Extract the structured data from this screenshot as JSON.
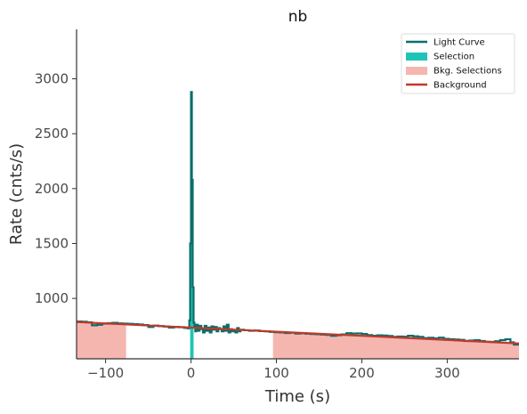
{
  "chart_data": {
    "type": "line",
    "title": "nb",
    "xlabel": "Time (s)",
    "ylabel": "Rate (cnts/s)",
    "xlim": [
      -134,
      384
    ],
    "ylim": [
      450,
      3450
    ],
    "xticks": [
      -100,
      0,
      100,
      200,
      300
    ],
    "xtick_labels": [
      "−100",
      "0",
      "100",
      "200",
      "300"
    ],
    "yticks": [
      1000,
      1500,
      2000,
      2500,
      3000
    ],
    "ytick_labels": [
      "1000",
      "1500",
      "2000",
      "2500",
      "3000"
    ],
    "grid": false,
    "legend_position": "top-right",
    "colors": {
      "light_curve": "#0a6e68",
      "selection": "#20c4b6",
      "bkg_selection": "#f5b6b0",
      "background": "#c0392b"
    },
    "legend": [
      {
        "label": "Light Curve",
        "kind": "line",
        "color": "#0a6e68"
      },
      {
        "label": "Selection",
        "kind": "patch",
        "color": "#20c4b6"
      },
      {
        "label": "Bkg. Selections",
        "kind": "patch",
        "color": "#f5b6b0"
      },
      {
        "label": "Background",
        "kind": "line",
        "color": "#c0392b"
      }
    ],
    "bkg_selections": [
      [
        -134,
        -76
      ],
      [
        96,
        384
      ]
    ],
    "selection": [
      -1,
      3
    ],
    "background_fit": {
      "x": [
        -134,
        384
      ],
      "y": [
        785,
        590
      ]
    },
    "light_curve": [
      [
        -134,
        790
      ],
      [
        -128,
        788
      ],
      [
        -122,
        783
      ],
      [
        -116,
        755
      ],
      [
        -110,
        760
      ],
      [
        -104,
        770
      ],
      [
        -98,
        775
      ],
      [
        -92,
        778
      ],
      [
        -86,
        772
      ],
      [
        -80,
        770
      ],
      [
        -74,
        768
      ],
      [
        -68,
        765
      ],
      [
        -62,
        762
      ],
      [
        -56,
        757
      ],
      [
        -50,
        740
      ],
      [
        -44,
        752
      ],
      [
        -38,
        748
      ],
      [
        -32,
        744
      ],
      [
        -26,
        735
      ],
      [
        -20,
        740
      ],
      [
        -14,
        738
      ],
      [
        -8,
        732
      ],
      [
        -4,
        728
      ],
      [
        -2,
        800
      ],
      [
        -1,
        1500
      ],
      [
        0,
        2880
      ],
      [
        1,
        2080
      ],
      [
        2,
        1100
      ],
      [
        3,
        780
      ],
      [
        4,
        740
      ],
      [
        5,
        700
      ],
      [
        6,
        760
      ],
      [
        8,
        705
      ],
      [
        10,
        750
      ],
      [
        12,
        720
      ],
      [
        14,
        690
      ],
      [
        16,
        750
      ],
      [
        18,
        705
      ],
      [
        20,
        735
      ],
      [
        22,
        690
      ],
      [
        24,
        745
      ],
      [
        26,
        715
      ],
      [
        28,
        740
      ],
      [
        30,
        700
      ],
      [
        32,
        730
      ],
      [
        34,
        720
      ],
      [
        36,
        700
      ],
      [
        38,
        745
      ],
      [
        40,
        705
      ],
      [
        42,
        760
      ],
      [
        44,
        690
      ],
      [
        46,
        720
      ],
      [
        48,
        700
      ],
      [
        50,
        710
      ],
      [
        52,
        690
      ],
      [
        54,
        730
      ],
      [
        56,
        700
      ],
      [
        58,
        715
      ],
      [
        62,
        710
      ],
      [
        68,
        705
      ],
      [
        74,
        708
      ],
      [
        80,
        702
      ],
      [
        86,
        700
      ],
      [
        92,
        695
      ],
      [
        98,
        692
      ],
      [
        104,
        690
      ],
      [
        110,
        685
      ],
      [
        116,
        688
      ],
      [
        122,
        680
      ],
      [
        128,
        683
      ],
      [
        134,
        679
      ],
      [
        140,
        676
      ],
      [
        146,
        674
      ],
      [
        152,
        671
      ],
      [
        158,
        668
      ],
      [
        164,
        660
      ],
      [
        170,
        665
      ],
      [
        176,
        672
      ],
      [
        182,
        683
      ],
      [
        188,
        680
      ],
      [
        194,
        681
      ],
      [
        200,
        676
      ],
      [
        206,
        666
      ],
      [
        212,
        660
      ],
      [
        218,
        664
      ],
      [
        224,
        662
      ],
      [
        230,
        658
      ],
      [
        236,
        650
      ],
      [
        242,
        653
      ],
      [
        248,
        651
      ],
      [
        254,
        660
      ],
      [
        260,
        655
      ],
      [
        266,
        650
      ],
      [
        272,
        639
      ],
      [
        278,
        642
      ],
      [
        284,
        636
      ],
      [
        290,
        643
      ],
      [
        296,
        632
      ],
      [
        302,
        629
      ],
      [
        308,
        626
      ],
      [
        314,
        622
      ],
      [
        320,
        612
      ],
      [
        326,
        616
      ],
      [
        332,
        619
      ],
      [
        338,
        612
      ],
      [
        344,
        605
      ],
      [
        350,
        604
      ],
      [
        356,
        610
      ],
      [
        362,
        620
      ],
      [
        368,
        628
      ],
      [
        374,
        600
      ],
      [
        378,
        580
      ],
      [
        384,
        575
      ]
    ]
  }
}
